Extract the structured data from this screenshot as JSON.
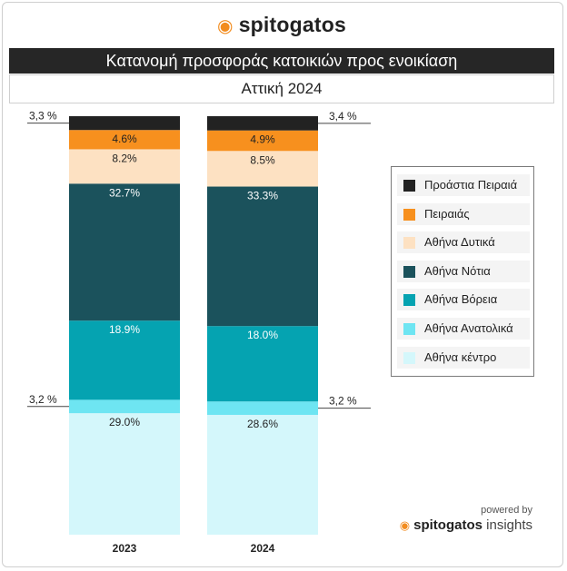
{
  "header": {
    "logo_icon": "cat-icon",
    "logo_text": "spitogatos",
    "brand_color": "#f28c1f"
  },
  "footer": {
    "powered_by": "powered by",
    "brand": "spitogatos",
    "brand_suffix": "insights"
  },
  "chart_data": {
    "type": "bar",
    "stacked": true,
    "normalized": true,
    "title": "Κατανομή προσφοράς κατοικιών προς ενοικίαση",
    "subtitle": "Αττική 2024",
    "categories": [
      "2023",
      "2024"
    ],
    "series": [
      {
        "name": "Αθήνα κέντρο",
        "color": "#d4f7fb",
        "values": [
          29.0,
          28.6
        ],
        "labels": [
          "29.0%",
          "28.6%"
        ],
        "outside": false
      },
      {
        "name": "Αθήνα Ανατολικά",
        "color": "#6ee5f2",
        "values": [
          3.2,
          3.2
        ],
        "labels": [
          "3,2 %",
          "3,2 %"
        ],
        "outside": true
      },
      {
        "name": "Αθήνα Βόρεια",
        "color": "#05a3b1",
        "values": [
          18.9,
          18.0
        ],
        "labels": [
          "18.9%",
          "18.0%"
        ],
        "outside": false
      },
      {
        "name": "Αθήνα Νότια",
        "color": "#1b525c",
        "values": [
          32.7,
          33.3
        ],
        "labels": [
          "32.7%",
          "33.3%"
        ],
        "outside": false
      },
      {
        "name": "Αθήνα Δυτικά",
        "color": "#fde1c2",
        "values": [
          8.2,
          8.5
        ],
        "labels": [
          "8.2%",
          "8.5%"
        ],
        "outside": false
      },
      {
        "name": "Πειραιάς",
        "color": "#f7901e",
        "values": [
          4.6,
          4.9
        ],
        "labels": [
          "4.6%",
          "4.9%"
        ],
        "outside": false
      },
      {
        "name": "Προάστια Πειραιά",
        "color": "#222222",
        "values": [
          3.3,
          3.4
        ],
        "labels": [
          "3,3 %",
          "3,4 %"
        ],
        "outside": true
      }
    ],
    "legend_order": [
      "Προάστια Πειραιά",
      "Πειραιάς",
      "Αθήνα Δυτικά",
      "Αθήνα Νότια",
      "Αθήνα Βόρεια",
      "Αθήνα Ανατολικά",
      "Αθήνα κέντρο"
    ],
    "legend_position": "right",
    "grid": false
  }
}
